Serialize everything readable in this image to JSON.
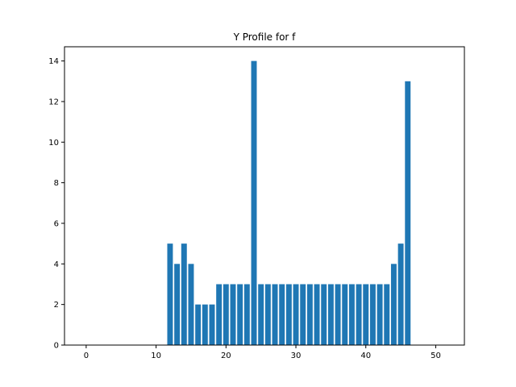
{
  "chart_data": {
    "type": "bar",
    "title": "Y Profile for f",
    "xlabel": "",
    "ylabel": "",
    "xlim": [
      -3.1,
      54.1
    ],
    "ylim": [
      0,
      14.7
    ],
    "x_ticks": [
      0,
      10,
      20,
      30,
      40,
      50
    ],
    "y_ticks": [
      0,
      2,
      4,
      6,
      8,
      10,
      12,
      14
    ],
    "grid": false,
    "bar_color": "#1f77b4",
    "bar_width": 0.8,
    "x": [
      12,
      13,
      14,
      15,
      16,
      17,
      18,
      19,
      20,
      21,
      22,
      23,
      24,
      25,
      26,
      27,
      28,
      29,
      30,
      31,
      32,
      33,
      34,
      35,
      36,
      37,
      38,
      39,
      40,
      41,
      42,
      43,
      44,
      45,
      46
    ],
    "values": [
      5,
      4,
      5,
      4,
      2,
      2,
      2,
      3,
      3,
      3,
      3,
      3,
      14,
      3,
      3,
      3,
      3,
      3,
      3,
      3,
      3,
      3,
      3,
      3,
      3,
      3,
      3,
      3,
      3,
      3,
      3,
      3,
      4,
      5,
      13
    ]
  }
}
